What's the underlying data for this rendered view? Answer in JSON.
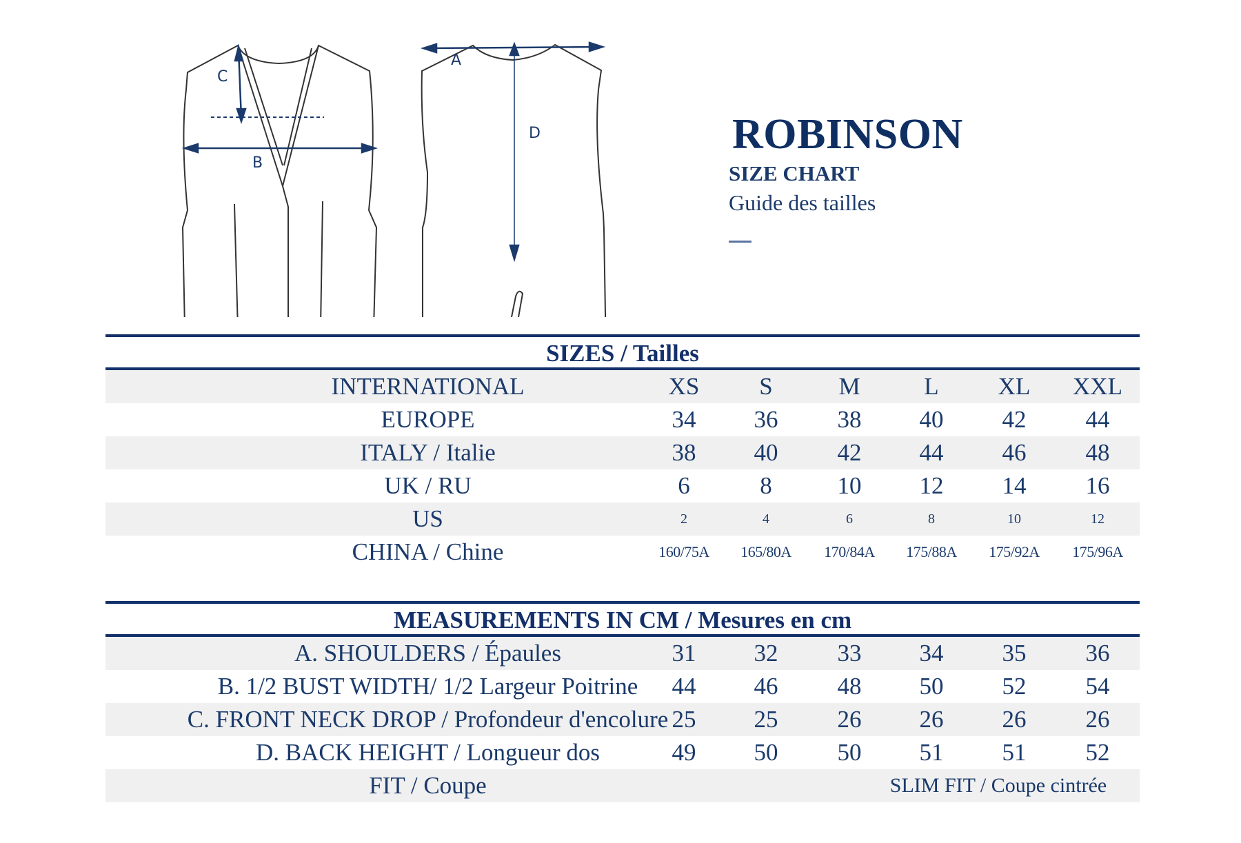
{
  "header": {
    "title": "ROBINSON",
    "subtitle": "SIZE CHART",
    "subtitle_fr": "Guide des tailles"
  },
  "diagram": {
    "labels": {
      "a": "A",
      "b": "B",
      "c": "C",
      "d": "D"
    },
    "accent_color": "#1b3a6b"
  },
  "sizes": {
    "heading": "SIZES / Tailles",
    "rows": [
      {
        "label": "INTERNATIONAL",
        "values": [
          "XS",
          "S",
          "M",
          "L",
          "XL",
          "XXL"
        ]
      },
      {
        "label": "EUROPE",
        "values": [
          "34",
          "36",
          "38",
          "40",
          "42",
          "44"
        ]
      },
      {
        "label": "ITALY / Italie",
        "values": [
          "38",
          "40",
          "42",
          "44",
          "46",
          "48"
        ]
      },
      {
        "label": "UK / RU",
        "values": [
          "6",
          "8",
          "10",
          "12",
          "14",
          "16"
        ]
      },
      {
        "label": "US",
        "values": [
          "2",
          "4",
          "6",
          "8",
          "10",
          "12"
        ]
      },
      {
        "label": "CHINA / Chine",
        "values": [
          "160/75A",
          "165/80A",
          "170/84A",
          "175/88A",
          "175/92A",
          "175/96A"
        ]
      }
    ]
  },
  "measurements": {
    "heading": "MEASUREMENTS IN CM / Mesures en cm",
    "rows": [
      {
        "label": "A. SHOULDERS / Épaules",
        "values": [
          "31",
          "32",
          "33",
          "34",
          "35",
          "36"
        ]
      },
      {
        "label": "B. 1/2 BUST WIDTH/ 1/2 Largeur Poitrine",
        "values": [
          "44",
          "46",
          "48",
          "50",
          "52",
          "54"
        ]
      },
      {
        "label": "C. FRONT NECK DROP / Profondeur d'encolure",
        "values": [
          "25",
          "25",
          "26",
          "26",
          "26",
          "26"
        ]
      },
      {
        "label": "D. BACK HEIGHT / Longueur dos",
        "values": [
          "49",
          "50",
          "50",
          "51",
          "51",
          "52"
        ]
      }
    ],
    "fit": {
      "label": "FIT / Coupe",
      "value": "SLIM FIT / Coupe cintrée"
    }
  }
}
